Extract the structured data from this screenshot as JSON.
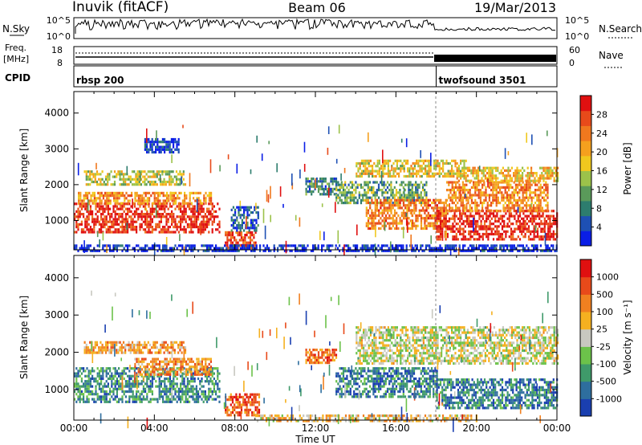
{
  "header": {
    "station": "Inuvik (fitACF)",
    "beam": "Beam 06",
    "date": "19/Mar/2013"
  },
  "status_panels": {
    "nsky_label": "N.Sky",
    "nsky_ticks": [
      "10^5",
      "10^0"
    ],
    "nsearch_label": "N.Search",
    "nsearch_ticks": [
      "10^5",
      "10^0"
    ],
    "freq_label_top": "Freq.",
    "freq_label_unit": "[MHz]",
    "freq_ticks": [
      "18",
      "8"
    ],
    "nave_label": "Nave",
    "nave_ticks": [
      "60",
      "0"
    ],
    "cpid_label": "CPID",
    "cpid_segments": [
      {
        "name": "rbsp 200",
        "start_hour": 0,
        "end_hour": 18
      },
      {
        "name": "twofsound 3501",
        "start_hour": 18,
        "end_hour": 24
      }
    ]
  },
  "chart_data": [
    {
      "type": "heatmap",
      "title": "",
      "xlabel": "Time UT",
      "ylabel": "Slant Range [km]",
      "x_range_hours": [
        0,
        24
      ],
      "x_ticks": [
        "00:00",
        "04:00",
        "08:00",
        "12:00",
        "16:00",
        "20:00",
        "00:00"
      ],
      "y_range": [
        180,
        4600
      ],
      "y_ticks": [
        "1000",
        "2000",
        "3000",
        "4000"
      ],
      "y_tick_values": [
        1000,
        2000,
        3000,
        4000
      ],
      "colorbar": {
        "label": "Power [dB]",
        "ticks": [
          "4",
          "8",
          "12",
          "16",
          "20",
          "24",
          "28"
        ],
        "tick_values": [
          4,
          8,
          12,
          16,
          20,
          24,
          28
        ],
        "range": [
          0,
          32
        ],
        "colors": [
          "#0a1ee6",
          "#1e50b4",
          "#2d7d6e",
          "#5a9a5a",
          "#9cc24a",
          "#f0c81e",
          "#f5a01e",
          "#f0781e",
          "#e84a1a",
          "#e01010"
        ]
      },
      "regions": [
        {
          "t0": 0,
          "t1": 7.2,
          "r0": 650,
          "r1": 1500,
          "level": 0.92
        },
        {
          "t0": 0.2,
          "t1": 6.8,
          "r0": 1500,
          "r1": 1800,
          "level": 0.7
        },
        {
          "t0": 0.5,
          "t1": 5.5,
          "r0": 2000,
          "r1": 2400,
          "level": 0.5
        },
        {
          "t0": 3.5,
          "t1": 5.2,
          "r0": 2900,
          "r1": 3300,
          "level": 0.1
        },
        {
          "t0": 7.5,
          "t1": 9.0,
          "r0": 250,
          "r1": 700,
          "level": 0.85
        },
        {
          "t0": 7.8,
          "t1": 9.2,
          "r0": 700,
          "r1": 1400,
          "level": 0.15
        },
        {
          "t0": 11.5,
          "t1": 13.0,
          "r0": 1700,
          "r1": 2200,
          "level": 0.25
        },
        {
          "t0": 13.0,
          "t1": 17.5,
          "r0": 1500,
          "r1": 2100,
          "level": 0.35
        },
        {
          "t0": 14.0,
          "t1": 19.5,
          "r0": 2200,
          "r1": 2700,
          "level": 0.55
        },
        {
          "t0": 14.5,
          "t1": 18.5,
          "r0": 800,
          "r1": 1600,
          "level": 0.75
        },
        {
          "t0": 18.0,
          "t1": 24.0,
          "r0": 500,
          "r1": 1300,
          "level": 0.93
        },
        {
          "t0": 18.5,
          "t1": 23.5,
          "r0": 1300,
          "r1": 2100,
          "level": 0.72
        },
        {
          "t0": 19.0,
          "t1": 24.0,
          "r0": 2100,
          "r1": 2500,
          "level": 0.6
        },
        {
          "t0": 0,
          "t1": 24,
          "r0": 180,
          "r1": 330,
          "level": 0.05
        }
      ]
    },
    {
      "type": "heatmap",
      "title": "",
      "xlabel": "Time UT",
      "ylabel": "Slant Range [km]",
      "x_range_hours": [
        0,
        24
      ],
      "x_ticks": [
        "00:00",
        "04:00",
        "08:00",
        "12:00",
        "16:00",
        "20:00",
        "00:00"
      ],
      "y_range": [
        180,
        4600
      ],
      "y_ticks": [
        "1000",
        "2000",
        "3000",
        "4000"
      ],
      "y_tick_values": [
        1000,
        2000,
        3000,
        4000
      ],
      "colorbar": {
        "label": "Velocity [m s⁻¹]",
        "ticks": [
          "1000",
          "500",
          "100",
          "25",
          "-25",
          "-100",
          "-500",
          "-1000"
        ],
        "colors": [
          "#1a3fb0",
          "#2e6e9e",
          "#3f9a6a",
          "#6cc24a",
          "#c8c8c0",
          "#f5b020",
          "#f08020",
          "#e84a1a",
          "#e01010"
        ]
      },
      "regions": [
        {
          "t0": 0,
          "t1": 7.2,
          "r0": 650,
          "r1": 1600,
          "level": 0.25
        },
        {
          "t0": 3.0,
          "t1": 6.8,
          "r0": 1400,
          "r1": 1850,
          "level": 0.7
        },
        {
          "t0": 0.5,
          "t1": 5.5,
          "r0": 2000,
          "r1": 2300,
          "level": 0.65
        },
        {
          "t0": 7.5,
          "t1": 9.2,
          "r0": 300,
          "r1": 900,
          "level": 0.8
        },
        {
          "t0": 11.5,
          "t1": 13.0,
          "r0": 1700,
          "r1": 2100,
          "level": 0.75
        },
        {
          "t0": 13.0,
          "t1": 18.0,
          "r0": 800,
          "r1": 1600,
          "level": 0.2
        },
        {
          "t0": 14.0,
          "t1": 24.0,
          "r0": 1700,
          "r1": 2700,
          "level": 0.5
        },
        {
          "t0": 18.0,
          "t1": 24.0,
          "r0": 500,
          "r1": 1300,
          "level": 0.2
        },
        {
          "t0": 9.0,
          "t1": 20.0,
          "r0": 180,
          "r1": 330,
          "level": 0.6
        }
      ]
    }
  ]
}
